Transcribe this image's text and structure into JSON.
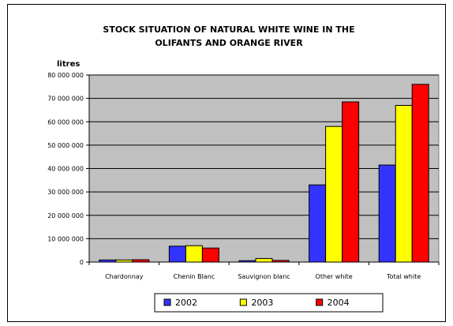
{
  "chart_data": {
    "type": "bar",
    "title_lines": [
      "STOCK SITUATION OF NATURAL WHITE WINE IN THE",
      "OLIFANTS AND ORANGE RIVER"
    ],
    "ylabel": "litres",
    "xlabel": "",
    "ylim": [
      0,
      80000000
    ],
    "yticks": [
      0,
      10000000,
      20000000,
      30000000,
      40000000,
      50000000,
      60000000,
      70000000,
      80000000
    ],
    "ytick_labels": [
      "0",
      "10 000 000",
      "20 000 000",
      "30 000 000",
      "40 000 000",
      "50 000 000",
      "60 000 000",
      "70 000 000",
      "80 000 000"
    ],
    "categories": [
      "Chardonnay",
      "Chenin Blanc",
      "Sauvignon blanc",
      "Other white",
      "Total white"
    ],
    "series": [
      {
        "name": "2002",
        "color": "#3333ff",
        "values": [
          900000,
          6800000,
          600000,
          33000000,
          41500000
        ]
      },
      {
        "name": "2003",
        "color": "#ffff00",
        "values": [
          900000,
          7000000,
          1500000,
          58000000,
          67000000
        ]
      },
      {
        "name": "2004",
        "color": "#ff0000",
        "values": [
          1000000,
          6000000,
          700000,
          68500000,
          76000000
        ]
      }
    ],
    "plot_background": "#c0c0c0",
    "grid": true,
    "legend_position": "bottom"
  }
}
